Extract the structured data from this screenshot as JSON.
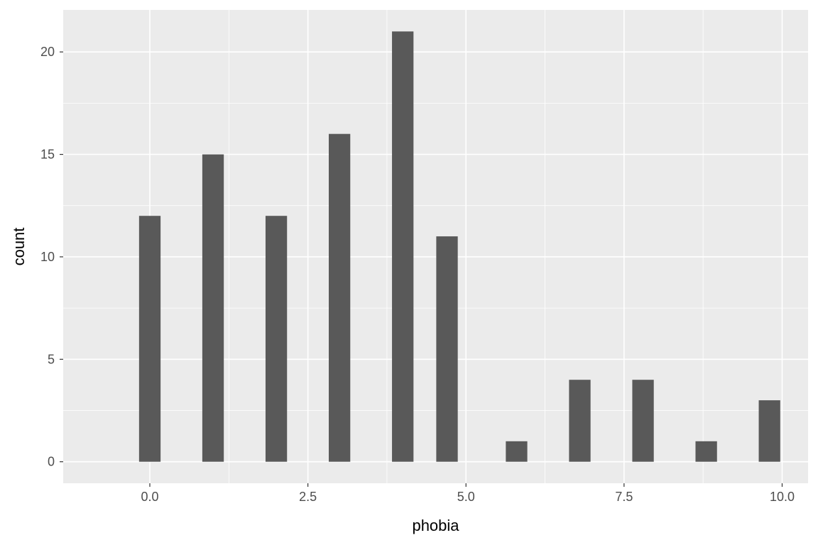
{
  "chart_data": {
    "type": "bar",
    "title": "",
    "xlabel": "phobia",
    "ylabel": "count",
    "x": [
      0,
      1,
      2,
      3,
      4,
      4.7,
      5.8,
      6.8,
      7.8,
      8.8,
      9.8
    ],
    "values": [
      12,
      15,
      12,
      16,
      21,
      11,
      1,
      4,
      4,
      1,
      3
    ],
    "bar_width": 0.34,
    "xlim": [
      -1.37,
      10.41
    ],
    "ylim": [
      -1.05,
      22.05
    ],
    "x_ticks": [
      0.0,
      2.5,
      5.0,
      7.5,
      10.0
    ],
    "x_tick_labels": [
      "0.0",
      "2.5",
      "5.0",
      "7.5",
      "10.0"
    ],
    "y_ticks": [
      0,
      5,
      10,
      15,
      20
    ],
    "y_tick_labels": [
      "0",
      "5",
      "10",
      "15",
      "20"
    ],
    "grid": true,
    "colors": {
      "panel": "#ebebeb",
      "grid": "#ffffff",
      "bar": "#595959",
      "tick": "#4d4d4d"
    }
  }
}
